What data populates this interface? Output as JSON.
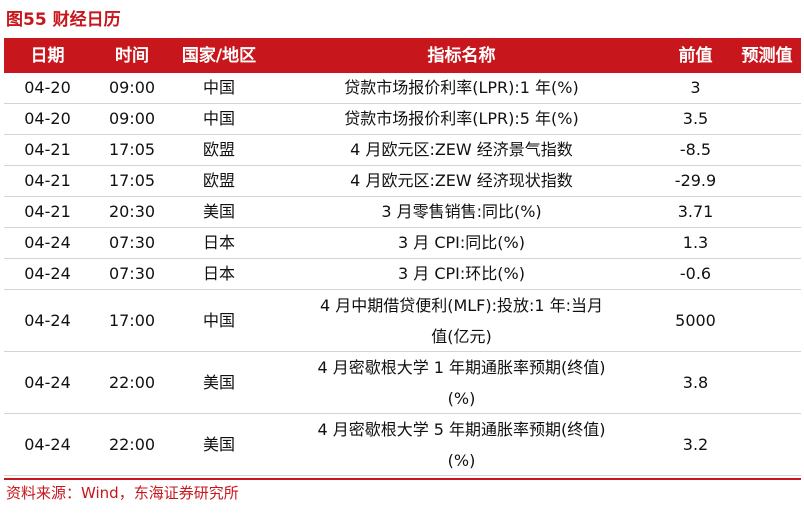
{
  "figure": {
    "title": "图55  财经日历"
  },
  "table": {
    "headers": {
      "date": "日期",
      "time": "时间",
      "country": "国家/地区",
      "indicator": "指标名称",
      "previous": "前值",
      "forecast": "预测值"
    },
    "rows": [
      {
        "date": "04-20",
        "time": "09:00",
        "country": "中国",
        "indicator": "贷款市场报价利率(LPR):1 年(%)",
        "previous": "3",
        "forecast": ""
      },
      {
        "date": "04-20",
        "time": "09:00",
        "country": "中国",
        "indicator": "贷款市场报价利率(LPR):5 年(%)",
        "previous": "3.5",
        "forecast": ""
      },
      {
        "date": "04-21",
        "time": "17:05",
        "country": "欧盟",
        "indicator": "4 月欧元区:ZEW 经济景气指数",
        "previous": "-8.5",
        "forecast": ""
      },
      {
        "date": "04-21",
        "time": "17:05",
        "country": "欧盟",
        "indicator": "4 月欧元区:ZEW 经济现状指数",
        "previous": "-29.9",
        "forecast": ""
      },
      {
        "date": "04-21",
        "time": "20:30",
        "country": "美国",
        "indicator": "3 月零售销售:同比(%)",
        "previous": "3.71",
        "forecast": ""
      },
      {
        "date": "04-24",
        "time": "07:30",
        "country": "日本",
        "indicator": "3 月 CPI:同比(%)",
        "previous": "1.3",
        "forecast": ""
      },
      {
        "date": "04-24",
        "time": "07:30",
        "country": "日本",
        "indicator": "3 月 CPI:环比(%)",
        "previous": "-0.6",
        "forecast": ""
      },
      {
        "date": "04-24",
        "time": "17:00",
        "country": "中国",
        "indicator": "4 月中期借贷便利(MLF):投放:1 年:当月值(亿元)",
        "previous": "5000",
        "forecast": ""
      },
      {
        "date": "04-24",
        "time": "22:00",
        "country": "美国",
        "indicator": "4 月密歇根大学 1 年期通胀率预期(终值)(%)",
        "previous": "3.8",
        "forecast": ""
      },
      {
        "date": "04-24",
        "time": "22:00",
        "country": "美国",
        "indicator": "4 月密歇根大学 5 年期通胀率预期(终值)(%)",
        "previous": "3.2",
        "forecast": ""
      }
    ]
  },
  "source": {
    "text": "资料来源：Wind，东海证券研究所"
  },
  "colors": {
    "accent": "#c8161d",
    "row_border": "#d4d4d4"
  }
}
